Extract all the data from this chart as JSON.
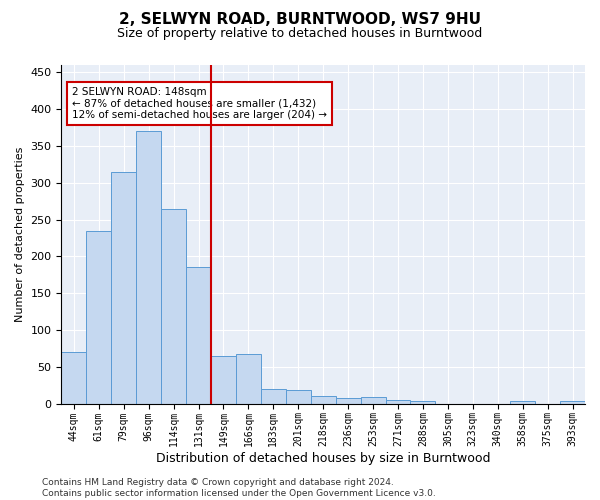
{
  "title": "2, SELWYN ROAD, BURNTWOOD, WS7 9HU",
  "subtitle": "Size of property relative to detached houses in Burntwood",
  "xlabel": "Distribution of detached houses by size in Burntwood",
  "ylabel": "Number of detached properties",
  "bins": [
    "44sqm",
    "61sqm",
    "79sqm",
    "96sqm",
    "114sqm",
    "131sqm",
    "149sqm",
    "166sqm",
    "183sqm",
    "201sqm",
    "218sqm",
    "236sqm",
    "253sqm",
    "271sqm",
    "288sqm",
    "305sqm",
    "323sqm",
    "340sqm",
    "358sqm",
    "375sqm",
    "393sqm"
  ],
  "values": [
    70,
    235,
    315,
    370,
    265,
    185,
    65,
    67,
    20,
    18,
    10,
    7,
    9,
    5,
    3,
    0,
    0,
    0,
    3,
    0,
    3
  ],
  "bar_color": "#c5d8f0",
  "bar_edge_color": "#5b9bd5",
  "vline_x": 5.5,
  "vline_color": "#cc0000",
  "annotation_text": "2 SELWYN ROAD: 148sqm\n← 87% of detached houses are smaller (1,432)\n12% of semi-detached houses are larger (204) →",
  "annotation_box_color": "#ffffff",
  "annotation_box_edge": "#cc0000",
  "footer": "Contains HM Land Registry data © Crown copyright and database right 2024.\nContains public sector information licensed under the Open Government Licence v3.0.",
  "ylim": [
    0,
    460
  ],
  "plot_background": "#e8eef7"
}
